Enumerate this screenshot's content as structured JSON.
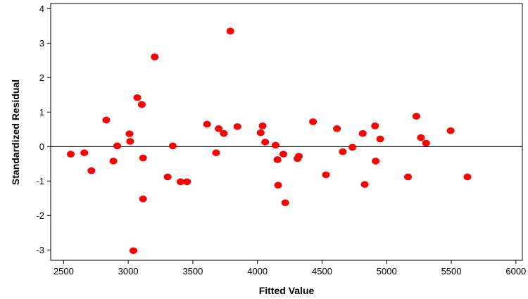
{
  "chart_data": {
    "type": "scatter",
    "xlabel": "Fitted Value",
    "ylabel": "Standardized Residual",
    "xlim": [
      2400,
      6050
    ],
    "ylim": [
      -3.3,
      4.15
    ],
    "xticks": [
      2500,
      3000,
      3500,
      4000,
      4500,
      5000,
      5500,
      6000
    ],
    "yticks": [
      -3,
      -2,
      -1,
      0,
      1,
      2,
      3,
      4
    ],
    "reference_line_y": 0,
    "grid": false,
    "marker_color": "#ff0000",
    "points": [
      {
        "x": 2555,
        "y": -0.22
      },
      {
        "x": 2660,
        "y": -0.18
      },
      {
        "x": 2715,
        "y": -0.7
      },
      {
        "x": 2830,
        "y": 0.77
      },
      {
        "x": 2885,
        "y": -0.42
      },
      {
        "x": 2915,
        "y": 0.02
      },
      {
        "x": 3010,
        "y": 0.37
      },
      {
        "x": 3015,
        "y": 0.15
      },
      {
        "x": 3040,
        "y": -3.02
      },
      {
        "x": 3070,
        "y": 1.42
      },
      {
        "x": 3105,
        "y": 1.22
      },
      {
        "x": 3115,
        "y": -0.33
      },
      {
        "x": 3115,
        "y": -1.52
      },
      {
        "x": 3205,
        "y": 2.6
      },
      {
        "x": 3305,
        "y": -0.88
      },
      {
        "x": 3345,
        "y": 0.02
      },
      {
        "x": 3405,
        "y": -1.02
      },
      {
        "x": 3455,
        "y": -1.02
      },
      {
        "x": 3610,
        "y": 0.65
      },
      {
        "x": 3680,
        "y": -0.18
      },
      {
        "x": 3700,
        "y": 0.52
      },
      {
        "x": 3740,
        "y": 0.38
      },
      {
        "x": 3790,
        "y": 3.35
      },
      {
        "x": 3845,
        "y": 0.58
      },
      {
        "x": 4025,
        "y": 0.4
      },
      {
        "x": 4040,
        "y": 0.6
      },
      {
        "x": 4060,
        "y": 0.13
      },
      {
        "x": 4140,
        "y": 0.04
      },
      {
        "x": 4155,
        "y": -0.38
      },
      {
        "x": 4160,
        "y": -1.12
      },
      {
        "x": 4200,
        "y": -0.22
      },
      {
        "x": 4215,
        "y": -1.63
      },
      {
        "x": 4310,
        "y": -0.35
      },
      {
        "x": 4320,
        "y": -0.28
      },
      {
        "x": 4430,
        "y": 0.72
      },
      {
        "x": 4530,
        "y": -0.82
      },
      {
        "x": 4615,
        "y": 0.52
      },
      {
        "x": 4660,
        "y": -0.15
      },
      {
        "x": 4735,
        "y": -0.02
      },
      {
        "x": 4815,
        "y": 0.38
      },
      {
        "x": 4830,
        "y": -1.1
      },
      {
        "x": 4910,
        "y": 0.6
      },
      {
        "x": 4915,
        "y": -0.42
      },
      {
        "x": 4950,
        "y": 0.22
      },
      {
        "x": 5165,
        "y": -0.88
      },
      {
        "x": 5230,
        "y": 0.88
      },
      {
        "x": 5265,
        "y": 0.26
      },
      {
        "x": 5305,
        "y": 0.1
      },
      {
        "x": 5495,
        "y": 0.46
      },
      {
        "x": 5625,
        "y": -0.88
      }
    ]
  }
}
